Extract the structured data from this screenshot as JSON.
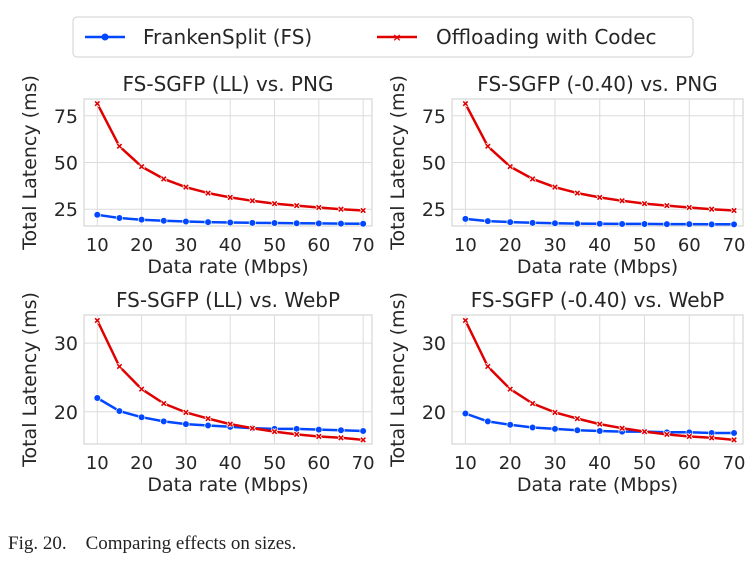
{
  "legend": {
    "entries": [
      {
        "name": "FrankenSplit (FS)",
        "color": "#0047ff",
        "marker": "circle"
      },
      {
        "name": "Offloading with Codec",
        "color": "#e00000",
        "marker": "x"
      }
    ],
    "placement": "top-center"
  },
  "caption": {
    "label": "Fig. 20.",
    "text": "Comparing effects on sizes."
  },
  "chart_data": [
    {
      "type": "line",
      "title": "FS-SGFP (LL) vs. PNG",
      "xlabel": "Data rate (Mbps)",
      "ylabel": "Total Latency (ms)",
      "x": [
        10,
        15,
        20,
        25,
        30,
        35,
        40,
        45,
        50,
        55,
        60,
        65,
        70
      ],
      "xlim": [
        7,
        72
      ],
      "ylim": [
        16,
        84
      ],
      "xticks": [
        10,
        20,
        30,
        40,
        50,
        60,
        70
      ],
      "yticks": [
        25,
        50,
        75
      ],
      "grid": true,
      "series": [
        {
          "name": "FrankenSplit (FS)",
          "values": [
            22.0,
            20.3,
            19.4,
            18.8,
            18.4,
            18.1,
            17.9,
            17.7,
            17.6,
            17.5,
            17.4,
            17.3,
            17.2
          ]
        },
        {
          "name": "Offloading with Codec",
          "values": [
            81.5,
            58.7,
            47.8,
            41.2,
            36.8,
            33.6,
            31.3,
            29.5,
            28.0,
            26.9,
            25.9,
            25.0,
            24.3
          ]
        }
      ]
    },
    {
      "type": "line",
      "title": "FS-SGFP (-0.40) vs. PNG",
      "xlabel": "Data rate (Mbps)",
      "ylabel": "Total Latency (ms)",
      "x": [
        10,
        15,
        20,
        25,
        30,
        35,
        40,
        45,
        50,
        55,
        60,
        65,
        70
      ],
      "xlim": [
        7,
        72
      ],
      "ylim": [
        16,
        84
      ],
      "xticks": [
        10,
        20,
        30,
        40,
        50,
        60,
        70
      ],
      "yticks": [
        25,
        50,
        75
      ],
      "grid": true,
      "series": [
        {
          "name": "FrankenSplit (FS)",
          "values": [
            19.8,
            18.6,
            18.1,
            17.7,
            17.5,
            17.3,
            17.2,
            17.1,
            17.1,
            17.0,
            17.0,
            16.9,
            16.9
          ]
        },
        {
          "name": "Offloading with Codec",
          "values": [
            81.5,
            58.7,
            47.8,
            41.2,
            36.8,
            33.6,
            31.3,
            29.5,
            28.0,
            26.9,
            25.9,
            25.0,
            24.3
          ]
        }
      ]
    },
    {
      "type": "line",
      "title": "FS-SGFP (LL) vs. WebP",
      "xlabel": "Data rate (Mbps)",
      "ylabel": "Total Latency (ms)",
      "x": [
        10,
        15,
        20,
        25,
        30,
        35,
        40,
        45,
        50,
        55,
        60,
        65,
        70
      ],
      "xlim": [
        7,
        72
      ],
      "ylim": [
        15.3,
        34.1
      ],
      "xticks": [
        10,
        20,
        30,
        40,
        50,
        60,
        70
      ],
      "yticks": [
        20,
        30
      ],
      "grid": true,
      "series": [
        {
          "name": "FrankenSplit (FS)",
          "values": [
            22.0,
            20.1,
            19.2,
            18.6,
            18.2,
            18.0,
            17.8,
            17.6,
            17.5,
            17.5,
            17.4,
            17.3,
            17.2
          ]
        },
        {
          "name": "Offloading with Codec",
          "values": [
            33.3,
            26.6,
            23.3,
            21.2,
            19.9,
            19.0,
            18.2,
            17.6,
            17.1,
            16.7,
            16.4,
            16.2,
            15.9
          ]
        }
      ]
    },
    {
      "type": "line",
      "title": "FS-SGFP (-0.40) vs. WebP",
      "xlabel": "Data rate (Mbps)",
      "ylabel": "Total Latency (ms)",
      "x": [
        10,
        15,
        20,
        25,
        30,
        35,
        40,
        45,
        50,
        55,
        60,
        65,
        70
      ],
      "xlim": [
        7,
        72
      ],
      "ylim": [
        15.3,
        34.1
      ],
      "xticks": [
        10,
        20,
        30,
        40,
        50,
        60,
        70
      ],
      "yticks": [
        20,
        30
      ],
      "grid": true,
      "series": [
        {
          "name": "FrankenSplit (FS)",
          "values": [
            19.75,
            18.6,
            18.1,
            17.7,
            17.5,
            17.3,
            17.2,
            17.1,
            17.1,
            17.0,
            17.0,
            16.9,
            16.9
          ]
        },
        {
          "name": "Offloading with Codec",
          "values": [
            33.3,
            26.6,
            23.3,
            21.2,
            19.9,
            19.0,
            18.2,
            17.6,
            17.1,
            16.7,
            16.4,
            16.2,
            15.9
          ]
        }
      ]
    }
  ]
}
